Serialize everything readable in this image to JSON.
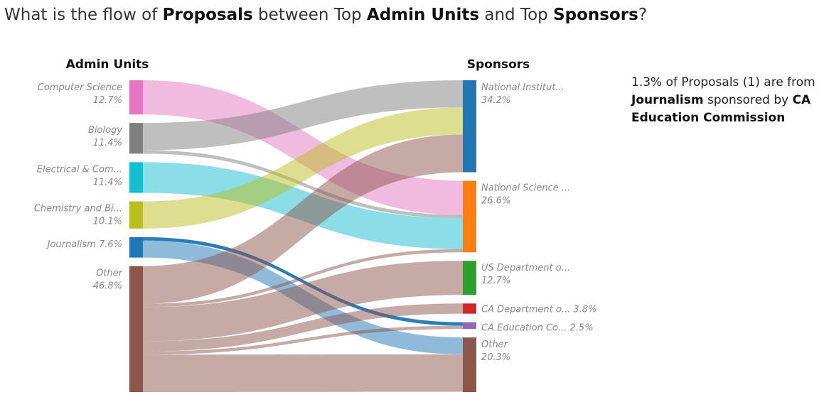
{
  "headline": {
    "p1": "What is the flow of ",
    "b1": "Proposals",
    "p2": " between Top ",
    "b2": "Admin Units",
    "p3": " and Top ",
    "b3": "Sponsors",
    "p4": "?"
  },
  "info": {
    "t1": "1.3% of Proposals (1) are from ",
    "b1": "Journalism",
    "t2": " sponsored by ",
    "b2": "CA Education Commission"
  },
  "chart_data": {
    "type": "sankey",
    "left_title": "Admin Units",
    "right_title": "Sponsors",
    "sources": [
      {
        "name": "Computer Science",
        "label": "Computer Science",
        "pct": "12.7%",
        "value": 12.7,
        "color": "#e377c2"
      },
      {
        "name": "Biology",
        "label": "Biology",
        "pct": "11.4%",
        "value": 11.4,
        "color": "#7f7f7f"
      },
      {
        "name": "Electrical & Com...",
        "label": "Electrical & Com...",
        "pct": "11.4%",
        "value": 11.4,
        "color": "#17becf"
      },
      {
        "name": "Chemistry and Bi...",
        "label": "Chemistry and Bi...",
        "pct": "10.1%",
        "value": 10.1,
        "color": "#bcbd22"
      },
      {
        "name": "Journalism",
        "label": "Journalism",
        "pct": "7.6%",
        "value": 7.6,
        "color": "#1f77b4"
      },
      {
        "name": "Other",
        "label": "Other",
        "pct": "46.8%",
        "value": 46.8,
        "color": "#8c564b"
      }
    ],
    "targets": [
      {
        "name": "National Institut...",
        "label": "National Institut...",
        "pct": "34.2%",
        "value": 34.2,
        "color": "#1f77b4"
      },
      {
        "name": "National Science ...",
        "label": "National Science ...",
        "pct": "26.6%",
        "value": 26.6,
        "color": "#ff7f0e"
      },
      {
        "name": "US Department o...",
        "label": "US Department o...",
        "pct": "12.7%",
        "value": 12.7,
        "color": "#2ca02c"
      },
      {
        "name": "CA Department o...",
        "label": "CA Department o...",
        "pct": "3.8%",
        "value": 3.8,
        "color": "#d62728"
      },
      {
        "name": "CA Education Co...",
        "label": "CA Education Co...",
        "pct": "2.5%",
        "value": 2.5,
        "color": "#9467bd"
      },
      {
        "name": "Other",
        "label": "Other",
        "pct": "20.3%",
        "value": 20.3,
        "color": "#8c564b"
      }
    ],
    "links": [
      {
        "source": 0,
        "target": 1,
        "value": 12.7
      },
      {
        "source": 1,
        "target": 0,
        "value": 10.1
      },
      {
        "source": 1,
        "target": 1,
        "value": 1.3
      },
      {
        "source": 2,
        "target": 1,
        "value": 11.4
      },
      {
        "source": 3,
        "target": 0,
        "value": 10.1
      },
      {
        "source": 4,
        "target": 4,
        "value": 1.3
      },
      {
        "source": 4,
        "target": 5,
        "value": 6.3
      },
      {
        "source": 5,
        "target": 0,
        "value": 14.0
      },
      {
        "source": 5,
        "target": 1,
        "value": 1.2
      },
      {
        "source": 5,
        "target": 2,
        "value": 12.7
      },
      {
        "source": 5,
        "target": 3,
        "value": 3.8
      },
      {
        "source": 5,
        "target": 4,
        "value": 1.2
      },
      {
        "source": 5,
        "target": 5,
        "value": 13.9
      }
    ]
  }
}
